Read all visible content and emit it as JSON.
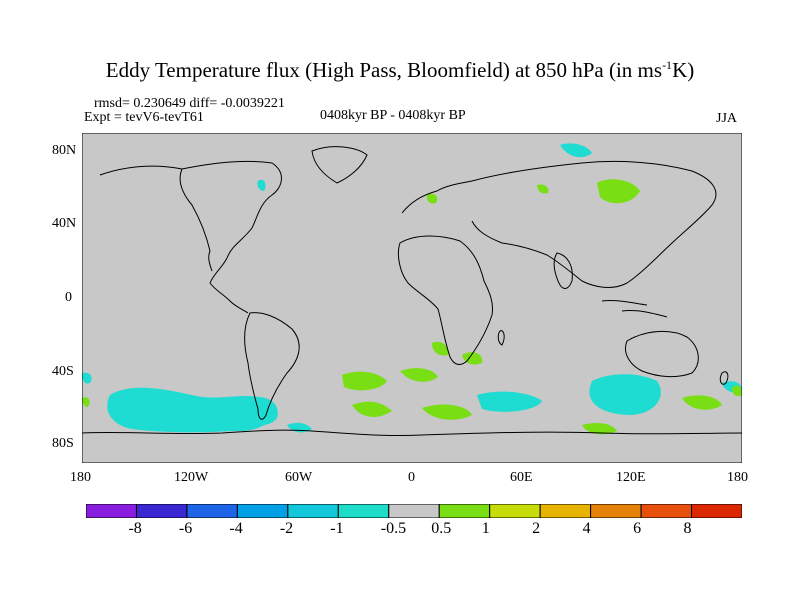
{
  "figure": {
    "title_main": "Eddy Temperature flux (High Pass, Bloomfield) at 850 hPa (in ms",
    "title_sup": "-1",
    "title_end": "K)",
    "stats": "rmsd= 0.230649 diff= -0.0039221",
    "experiment": "Expt = tevV6-tevT61",
    "period": "0408kyr BP - 0408kyr BP",
    "season": "JJA"
  },
  "axes": {
    "x_ticks": [
      "180",
      "120W",
      "60W",
      "0",
      "60E",
      "120E",
      "180"
    ],
    "y_ticks": [
      "80N",
      "40N",
      "0",
      "40S",
      "80S"
    ]
  },
  "colorbar": {
    "labels": [
      "-8",
      "-6",
      "-4",
      "-2",
      "-1",
      "-0.5",
      "0.5",
      "1",
      "2",
      "4",
      "6",
      "8"
    ],
    "colors": [
      "#8a1ee0",
      "#3c28d2",
      "#1e64e6",
      "#00a0e6",
      "#14c8dc",
      "#1edcc8",
      "#c8c8c8",
      "#7ade14",
      "#c8dc0a",
      "#e6b400",
      "#e6820a",
      "#e6500a",
      "#dc2800"
    ]
  },
  "colors": {
    "ocean_land_fill": "#c8c8c8",
    "negative_anomaly": "#1edcd2",
    "positive_anomaly": "#7ade14"
  }
}
